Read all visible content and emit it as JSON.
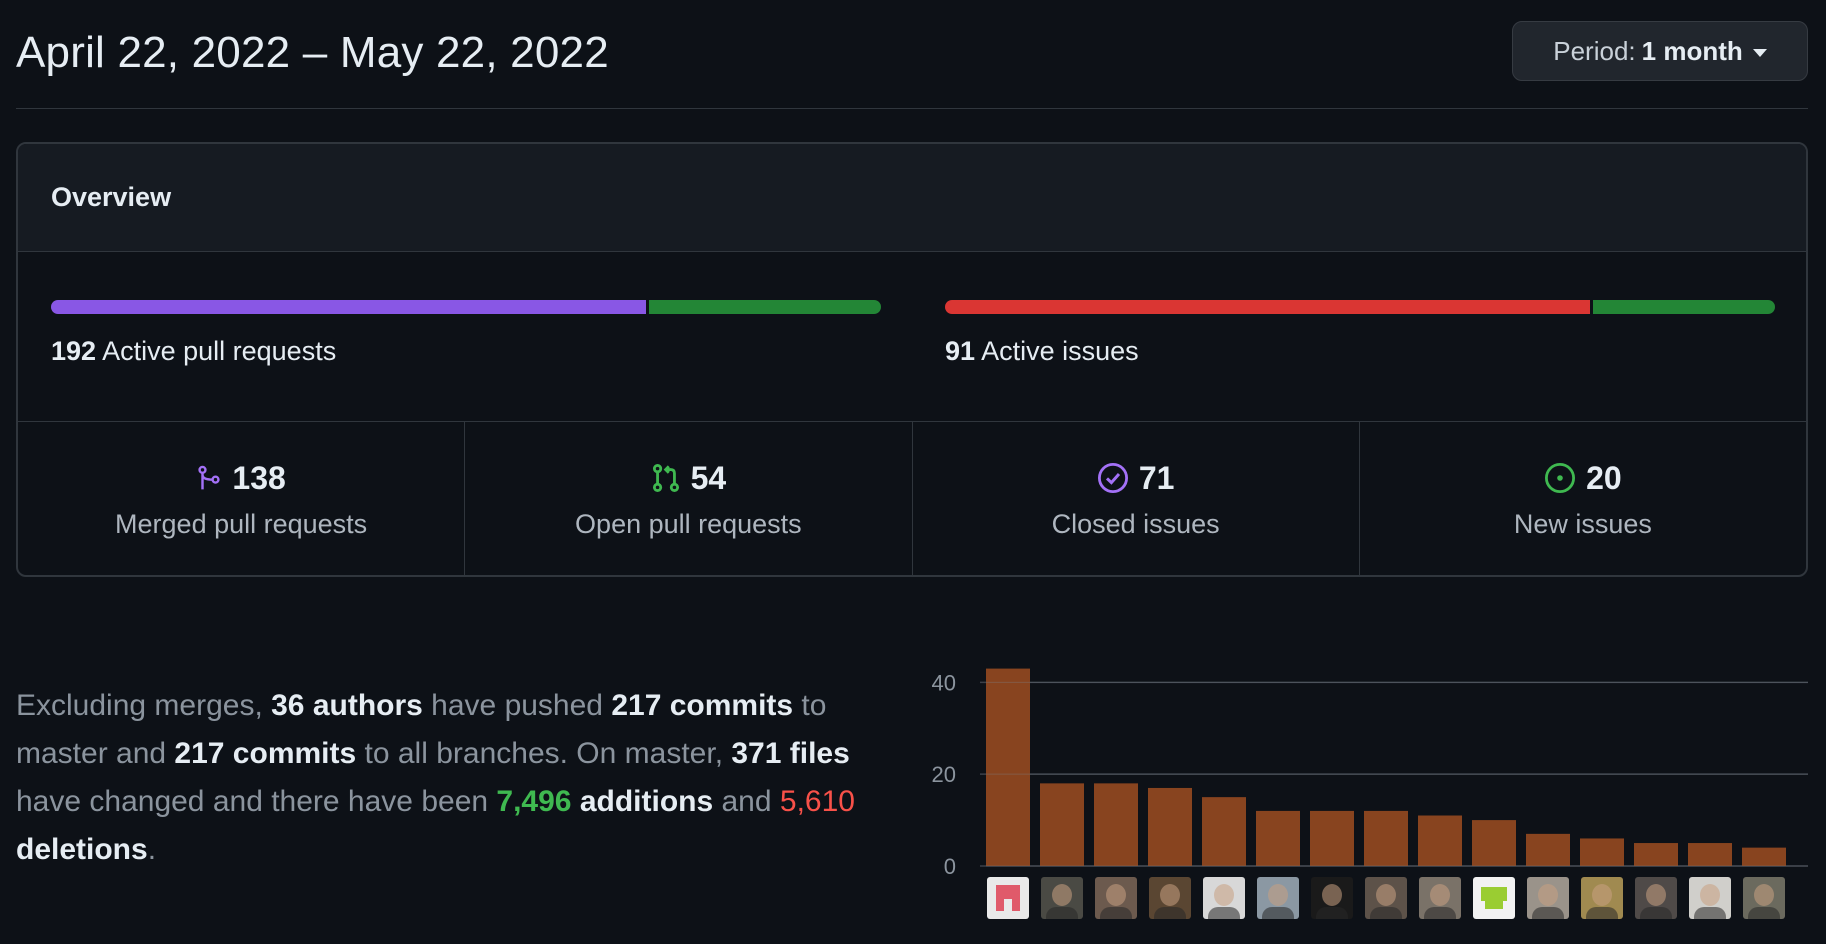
{
  "header": {
    "date_range": "April 22, 2022 – May 22, 2022",
    "period_label": "Period:",
    "period_value": "1 month"
  },
  "overview": {
    "title": "Overview",
    "pull_requests": {
      "count": "192",
      "label": "Active pull requests",
      "merged_fraction": 0.719,
      "colors": [
        "#8957e5",
        "#238636"
      ]
    },
    "issues": {
      "count": "91",
      "label": "Active issues",
      "closed_fraction": 0.78,
      "colors": [
        "#da3633",
        "#238636"
      ]
    },
    "stats": [
      {
        "icon": "git-merge-icon",
        "color": "#a371f7",
        "value": "138",
        "label": "Merged pull requests"
      },
      {
        "icon": "git-pull-request-icon",
        "color": "#3fb950",
        "value": "54",
        "label": "Open pull requests"
      },
      {
        "icon": "issue-closed-icon",
        "color": "#a371f7",
        "value": "71",
        "label": "Closed issues"
      },
      {
        "icon": "issue-opened-icon",
        "color": "#3fb950",
        "value": "20",
        "label": "New issues"
      }
    ]
  },
  "summary": {
    "p1": "Excluding merges, ",
    "authors": "36 authors",
    "p2": " have pushed ",
    "commits_master": "217 commits",
    "p3": " to master and ",
    "commits_all": "217 commits",
    "p4": " to all branches. On master, ",
    "files": "371 files",
    "p5": " have changed and there have been ",
    "additions_num": "7,496",
    "additions_word": " additions",
    "p6": " and ",
    "deletions_num": "5,610",
    "deletions_word": " deletions",
    "p7": "."
  },
  "chart_data": {
    "type": "bar",
    "bar_color": "#8b4520",
    "ylim": [
      0,
      44
    ],
    "yticks": [
      0,
      20,
      40
    ],
    "values": [
      43,
      18,
      18,
      17,
      15,
      12,
      12,
      12,
      11,
      10,
      7,
      6,
      5,
      5,
      4
    ],
    "avatar_colors": [
      "#e9e9e9",
      "#4a4a44",
      "#6c5a4e",
      "#5a4632",
      "#d8d8d8",
      "#8b98a3",
      "#1a1a1a",
      "#5d5249",
      "#7a7268",
      "#f2f2f2",
      "#9a938a",
      "#a08a50",
      "#4f4a48",
      "#d0cfcb",
      "#6b6a5e"
    ]
  }
}
